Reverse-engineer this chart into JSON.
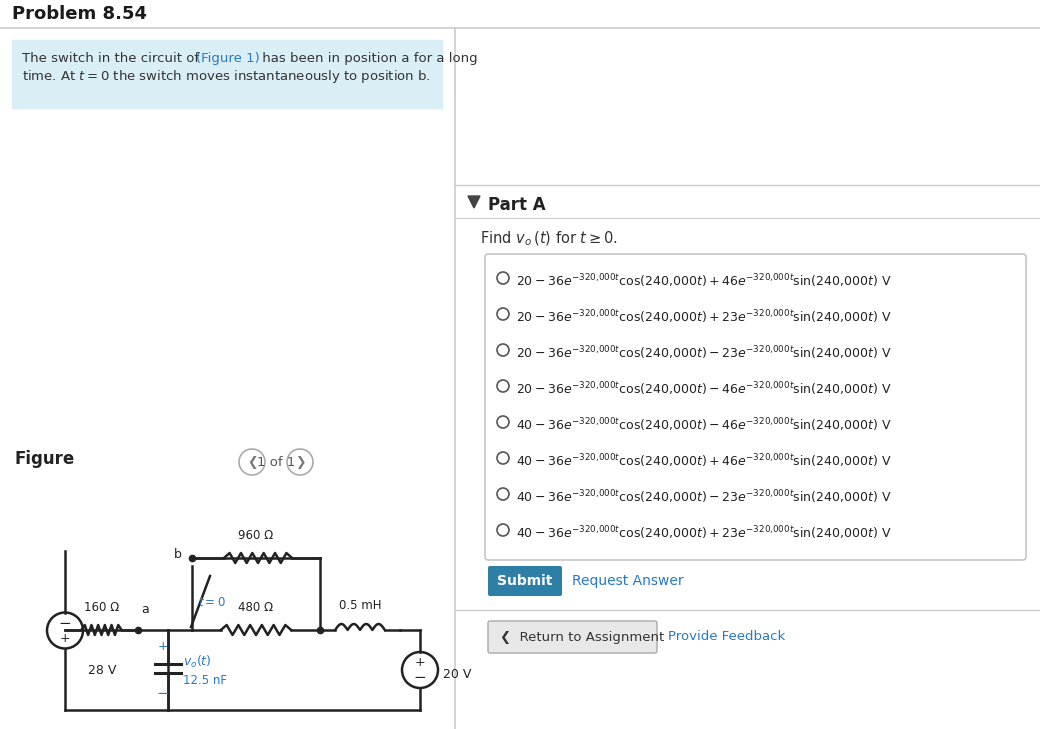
{
  "title": "Problem 8.54",
  "bg_color": "#ffffff",
  "left_panel_bg": "#daeef5",
  "link_color": "#2879c0",
  "submit_btn_color": "#2e7fa8",
  "options_math": [
    "20 - 36e^{-320{,}000t}\\cos(240{,}000t) + 46e^{-320{,}000t}\\sin(240{,}000t)\\text{ V}",
    "20 - 36e^{-320{,}000t}\\cos(240{,}000t) + 23e^{-320{,}000t}\\sin(240{,}000t)\\text{ V}",
    "20 - 36e^{-320{,}000t}\\cos(240{,}000t) - 23e^{-320{,}000t}\\sin(240{,}000t)\\text{ V}",
    "20 - 36e^{-320{,}000t}\\cos(240{,}000t) - 46e^{-320{,}000t}\\sin(240{,}000t)\\text{ V}",
    "40 - 36e^{-320{,}000t}\\cos(240{,}000t) - 46e^{-320{,}000t}\\sin(240{,}000t)\\text{ V}",
    "40 - 36e^{-320{,}000t}\\cos(240{,}000t) + 46e^{-320{,}000t}\\sin(240{,}000t)\\text{ V}",
    "40 - 36e^{-320{,}000t}\\cos(240{,}000t) - 23e^{-320{,}000t}\\sin(240{,}000t)\\text{ V}",
    "40 - 36e^{-320{,}000t}\\cos(240{,}000t) + 23e^{-320{,}000t}\\sin(240{,}000t)\\text{ V}"
  ],
  "wire_color": "#222222",
  "cyan_color": "#2879c0"
}
